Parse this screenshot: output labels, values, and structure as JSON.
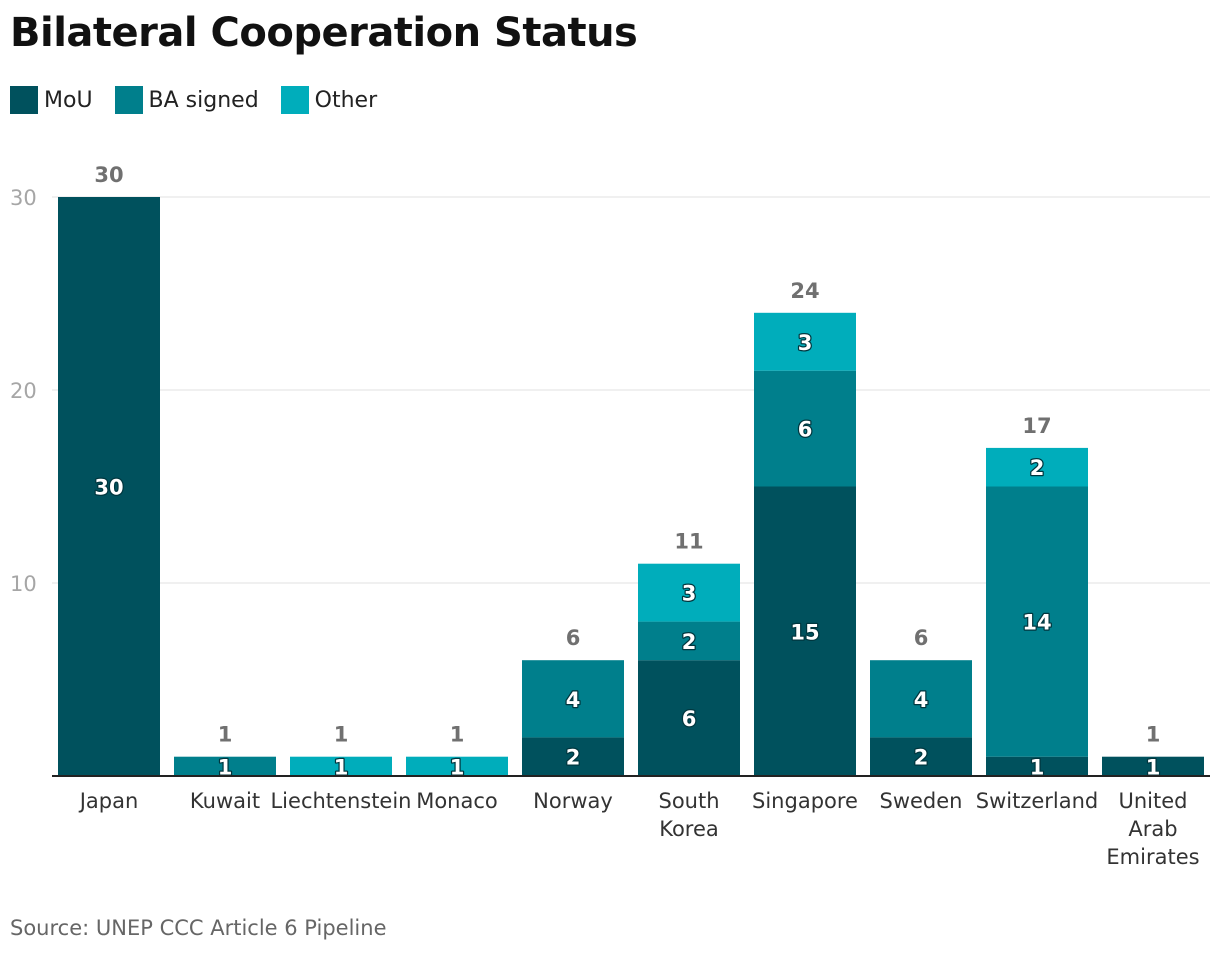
{
  "title": "Bilateral Cooperation Status",
  "source": "Source: UNEP CCC Article 6 Pipeline",
  "colors": {
    "mou": "#00515d",
    "ba": "#007f8c",
    "other": "#00adbb"
  },
  "legend": [
    {
      "label": "MoU",
      "color": "#00515d"
    },
    {
      "label": "BA signed",
      "color": "#007f8c"
    },
    {
      "label": "Other",
      "color": "#00adbb"
    }
  ],
  "chart_data": {
    "type": "bar",
    "stacked": true,
    "title": "Bilateral Cooperation Status",
    "categories": [
      "Japan",
      "Kuwait",
      "Liechtenstein",
      "Monaco",
      "Norway",
      "South Korea",
      "Singapore",
      "Sweden",
      "Switzerland",
      "United Arab Emirates"
    ],
    "category_lines": [
      [
        "Japan"
      ],
      [
        "Kuwait"
      ],
      [
        "Liechtenstein"
      ],
      [
        "Monaco"
      ],
      [
        "Norway"
      ],
      [
        "South",
        "Korea"
      ],
      [
        "Singapore"
      ],
      [
        "Sweden"
      ],
      [
        "Switzerland"
      ],
      [
        "United",
        "Arab",
        "Emirates"
      ]
    ],
    "series": [
      {
        "name": "MoU",
        "values": [
          30,
          0,
          0,
          0,
          2,
          6,
          15,
          2,
          1,
          1
        ]
      },
      {
        "name": "BA signed",
        "values": [
          0,
          1,
          0,
          0,
          4,
          2,
          6,
          4,
          14,
          0
        ]
      },
      {
        "name": "Other",
        "values": [
          0,
          0,
          1,
          1,
          0,
          3,
          3,
          0,
          2,
          0
        ]
      }
    ],
    "totals": [
      30,
      1,
      1,
      1,
      6,
      11,
      24,
      6,
      17,
      1
    ],
    "yticks": [
      10,
      20,
      30
    ],
    "ylim": [
      0,
      30
    ],
    "xlabel": "",
    "ylabel": ""
  }
}
